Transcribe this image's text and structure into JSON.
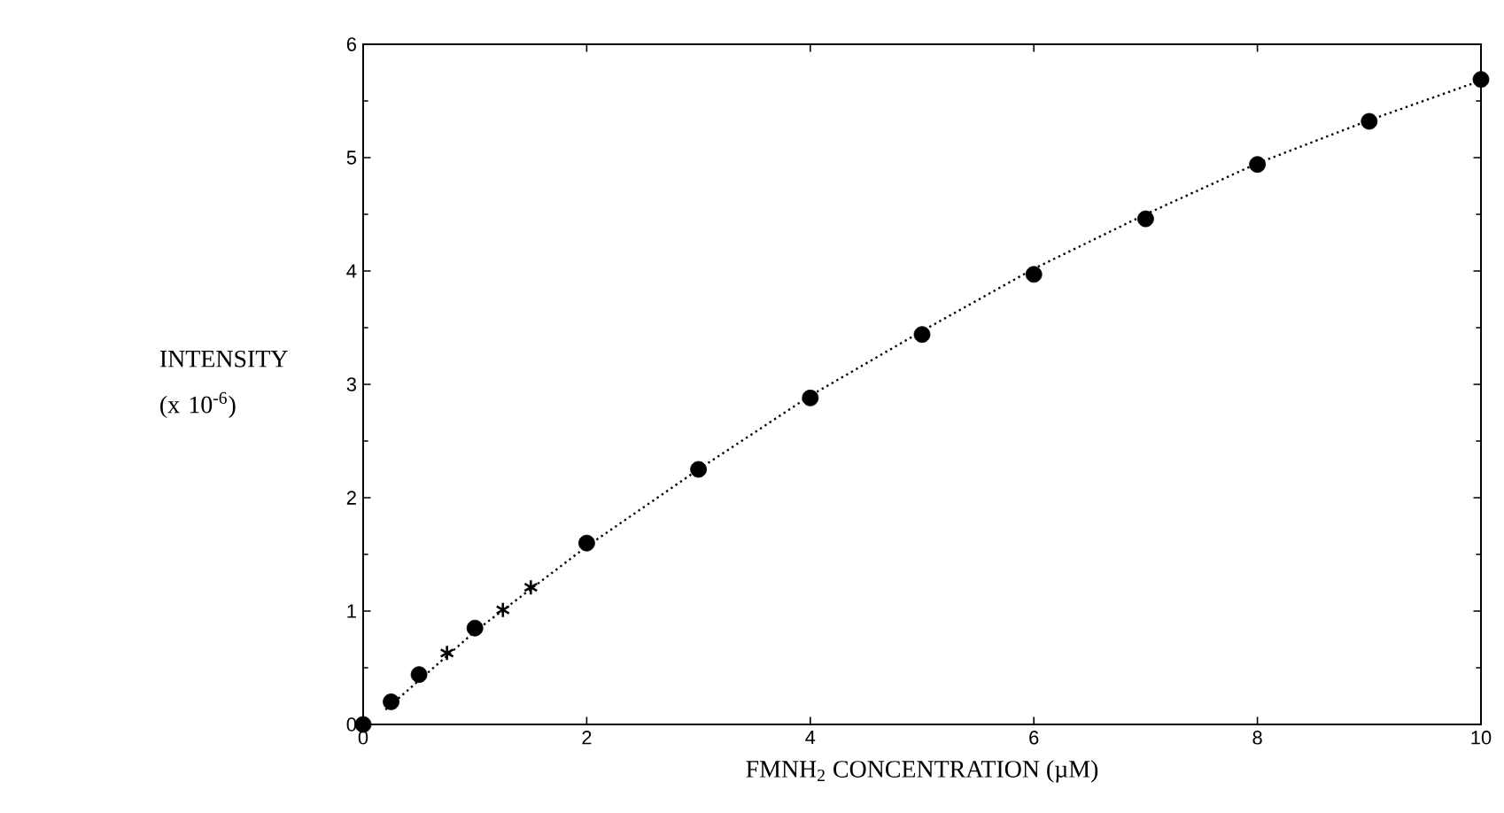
{
  "chart_data": {
    "type": "scatter",
    "xlabel": "FMNH$_{2}$ CONCENTRATION (µM)",
    "ylabel": "INTENSITY (x 10$^{-6}$)",
    "xlim": [
      0,
      10
    ],
    "ylim": [
      0,
      6
    ],
    "xticks": [
      0,
      2,
      4,
      6,
      8,
      10
    ],
    "yticks": [
      0,
      1,
      2,
      3,
      4,
      5,
      6
    ],
    "grid": false,
    "series": [
      {
        "type": "line",
        "color": "#000000",
        "marker": "none",
        "line_style": "dotted",
        "x": [
          0.2,
          1,
          2,
          3,
          4,
          5,
          6,
          7,
          8,
          9,
          10
        ],
        "values": [
          0.13,
          0.82,
          1.57,
          2.25,
          2.9,
          3.47,
          4.02,
          4.5,
          4.95,
          5.33,
          5.68
        ]
      },
      {
        "color": "#000000",
        "marker": "circle",
        "x": [
          0,
          0.25,
          0.5,
          1,
          2,
          3,
          4,
          5,
          6,
          7,
          8,
          9,
          10
        ],
        "values": [
          0,
          0.2,
          0.44,
          0.85,
          1.6,
          2.25,
          2.88,
          3.44,
          3.97,
          4.46,
          4.94,
          5.32,
          5.69
        ]
      },
      {
        "color": "#000000",
        "marker": "cross",
        "x": [
          0.75,
          1.25,
          1.5
        ],
        "values": [
          0.63,
          1.01,
          1.21
        ]
      }
    ]
  }
}
